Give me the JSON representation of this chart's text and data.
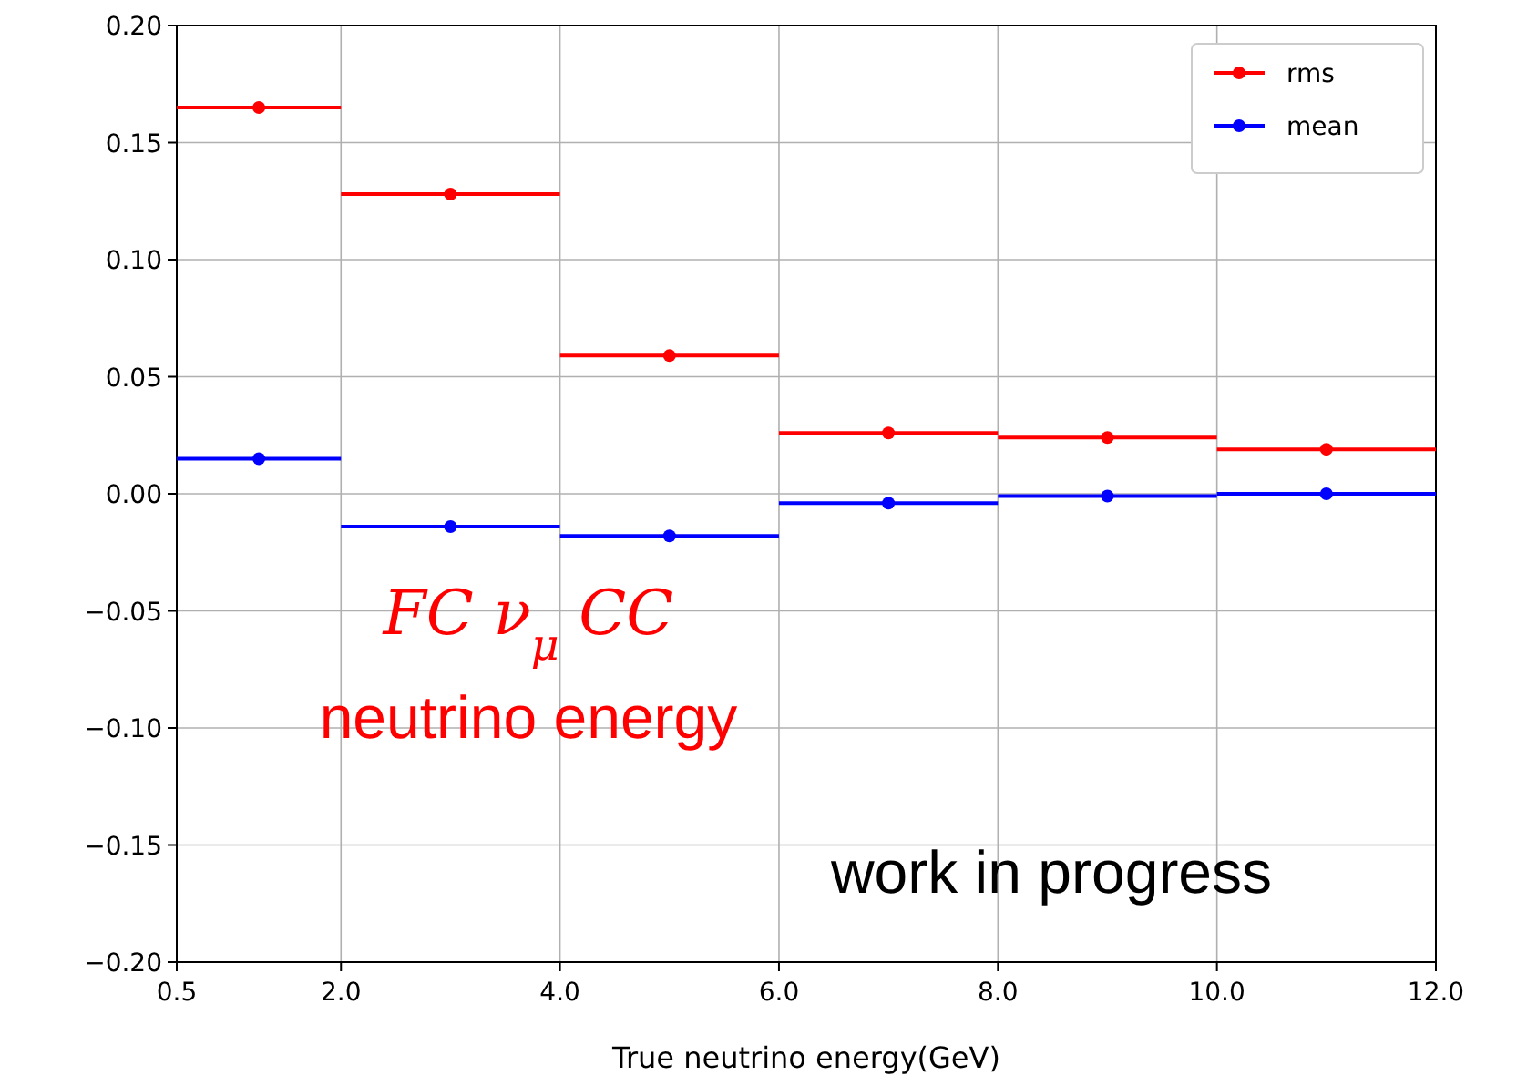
{
  "chart_data": {
    "type": "scatter",
    "xlabel": "True neutrino energy(GeV)",
    "x": [
      1.25,
      3,
      5,
      7,
      9,
      11
    ],
    "series": [
      {
        "name": "rms",
        "color": "#ff0000",
        "values": [
          0.165,
          0.128,
          0.059,
          0.026,
          0.024,
          0.019
        ],
        "xerrors": [
          0.75,
          1,
          1,
          1,
          1,
          1
        ]
      },
      {
        "name": "mean",
        "color": "#0000ff",
        "values": [
          0.015,
          -0.014,
          -0.018,
          -0.004,
          -0.001,
          0.0
        ],
        "xerrors": [
          0.75,
          1,
          1,
          1,
          1,
          1
        ]
      }
    ],
    "xlim": [
      0.5,
      12
    ],
    "xticks": [
      {
        "value": 0.5,
        "label": "0.5"
      },
      {
        "value": 2,
        "label": "2.0"
      },
      {
        "value": 4,
        "label": "4.0"
      },
      {
        "value": 6,
        "label": "6.0"
      },
      {
        "value": 8,
        "label": "8.0"
      },
      {
        "value": 10,
        "label": "10.0"
      },
      {
        "value": 12,
        "label": "12.0"
      }
    ],
    "ylim": [
      -0.2,
      0.2
    ],
    "yticks": [
      {
        "value": -0.2,
        "label": "−0.20"
      },
      {
        "value": -0.15,
        "label": "−0.15"
      },
      {
        "value": -0.1,
        "label": "−0.10"
      },
      {
        "value": -0.05,
        "label": "−0.05"
      },
      {
        "value": 0,
        "label": "0.00"
      },
      {
        "value": 0.05,
        "label": "0.05"
      },
      {
        "value": 0.1,
        "label": "0.10"
      },
      {
        "value": 0.15,
        "label": "0.15"
      },
      {
        "value": 0.2,
        "label": "0.20"
      }
    ],
    "grid": true,
    "legend": "top right",
    "marker": "circle",
    "annotations": [
      "FC ν$_{μ}$ CC",
      "neutrino energy",
      "work in progress"
    ]
  }
}
